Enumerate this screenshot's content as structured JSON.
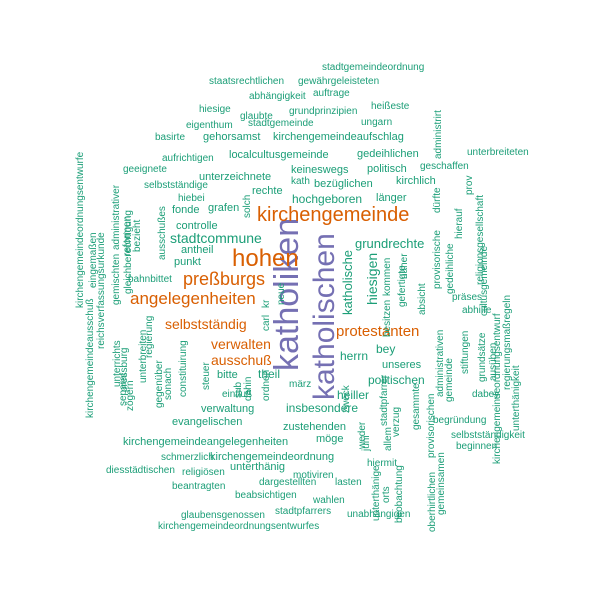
{
  "colors": {
    "green": "#1b9e77",
    "orange": "#d95f02",
    "purple": "#7570b3"
  },
  "words": [
    {
      "text": "katholiken",
      "color": "purple"
    },
    {
      "text": "katholischen",
      "color": "purple"
    },
    {
      "text": "hohen",
      "color": "orange"
    },
    {
      "text": "kirchengemeinde",
      "color": "orange"
    },
    {
      "text": "preßburgs",
      "color": "orange"
    },
    {
      "text": "angelegenheiten",
      "color": "orange"
    },
    {
      "text": "protestanten",
      "color": "orange"
    },
    {
      "text": "selbstständig",
      "color": "orange"
    },
    {
      "text": "verwalten",
      "color": "orange"
    },
    {
      "text": "ausschuß",
      "color": "orange"
    },
    {
      "text": "stadtcommune",
      "color": "green"
    },
    {
      "text": "hiesigen",
      "color": "green"
    },
    {
      "text": "katholische",
      "color": "green"
    },
    {
      "text": "grundrechte",
      "color": "green"
    },
    {
      "text": "hochgeboren",
      "color": "green"
    },
    {
      "text": "theil",
      "color": "green"
    },
    {
      "text": "herrn",
      "color": "green"
    },
    {
      "text": "politischen",
      "color": "green"
    },
    {
      "text": "insbesondere",
      "color": "green"
    },
    {
      "text": "bey",
      "color": "green"
    },
    {
      "text": "heiller",
      "color": "green"
    },
    {
      "text": "zustehenden",
      "color": "green"
    },
    {
      "text": "kirchengemeindeordnung",
      "color": "green"
    },
    {
      "text": "kirchengemeindeangelegenheiten",
      "color": "green"
    },
    {
      "text": "evangelischen",
      "color": "green"
    },
    {
      "text": "verwaltung",
      "color": "green"
    },
    {
      "text": "möge",
      "color": "green"
    },
    {
      "text": "unterthänig",
      "color": "green"
    },
    {
      "text": "localcultusgemeinde",
      "color": "green"
    },
    {
      "text": "gedeihlichen",
      "color": "green"
    },
    {
      "text": "unterzeichnete",
      "color": "green"
    },
    {
      "text": "bezüglichen",
      "color": "green"
    },
    {
      "text": "keineswegs",
      "color": "green"
    },
    {
      "text": "politisch",
      "color": "green"
    },
    {
      "text": "kirchlich",
      "color": "green"
    },
    {
      "text": "länger",
      "color": "green"
    },
    {
      "text": "rechte",
      "color": "green"
    },
    {
      "text": "controlle",
      "color": "green"
    },
    {
      "text": "fonde",
      "color": "green"
    },
    {
      "text": "grafen",
      "color": "green"
    },
    {
      "text": "antheil",
      "color": "green"
    },
    {
      "text": "punkt",
      "color": "green"
    },
    {
      "text": "bahnbittet",
      "color": "green"
    },
    {
      "text": "bitte",
      "color": "green"
    },
    {
      "text": "unseres",
      "color": "green"
    },
    {
      "text": "gehorsamst",
      "color": "green"
    },
    {
      "text": "kirchengemeindeaufschlag",
      "color": "green"
    },
    {
      "text": "stadtgemeinde",
      "color": "green"
    },
    {
      "text": "eigenthum",
      "color": "green"
    },
    {
      "text": "grundprinzipien",
      "color": "green"
    },
    {
      "text": "glaubte",
      "color": "green"
    },
    {
      "text": "hiesige",
      "color": "green"
    },
    {
      "text": "heißeste",
      "color": "green"
    },
    {
      "text": "ungarn",
      "color": "green"
    },
    {
      "text": "abhängigkeit",
      "color": "green"
    },
    {
      "text": "auftrage",
      "color": "green"
    },
    {
      "text": "staatsrechtlichen",
      "color": "green"
    },
    {
      "text": "gewährgeleisteten",
      "color": "green"
    },
    {
      "text": "stadtgemeindeordnung",
      "color": "green"
    },
    {
      "text": "basirte",
      "color": "green"
    },
    {
      "text": "aufrichtigen",
      "color": "green"
    },
    {
      "text": "geeignete",
      "color": "green"
    },
    {
      "text": "selbstständige",
      "color": "green"
    },
    {
      "text": "hiebei",
      "color": "green"
    },
    {
      "text": "kath",
      "color": "green"
    },
    {
      "text": "geschaffen",
      "color": "green"
    },
    {
      "text": "unterbreiteten",
      "color": "green"
    },
    {
      "text": "präses",
      "color": "green"
    },
    {
      "text": "abhilfe",
      "color": "green"
    },
    {
      "text": "stiftungen",
      "color": "green"
    },
    {
      "text": "grundsätze",
      "color": "green"
    },
    {
      "text": "ausüben",
      "color": "green"
    },
    {
      "text": "dabey",
      "color": "green"
    },
    {
      "text": "begründung",
      "color": "green"
    },
    {
      "text": "selbstständigkeit",
      "color": "green"
    },
    {
      "text": "beginnen",
      "color": "green"
    },
    {
      "text": "einfluß",
      "color": "green"
    },
    {
      "text": "märz",
      "color": "green"
    },
    {
      "text": "schmerzlich",
      "color": "green"
    },
    {
      "text": "religiösen",
      "color": "green"
    },
    {
      "text": "diesstädtischen",
      "color": "green"
    },
    {
      "text": "beantragten",
      "color": "green"
    },
    {
      "text": "dargestellten",
      "color": "green"
    },
    {
      "text": "lasten",
      "color": "green"
    },
    {
      "text": "beabsichtigen",
      "color": "green"
    },
    {
      "text": "wahlen",
      "color": "green"
    },
    {
      "text": "motiviren",
      "color": "green"
    },
    {
      "text": "hiermit",
      "color": "green"
    },
    {
      "text": "glaubensgenossen",
      "color": "green"
    },
    {
      "text": "stadtpfarrers",
      "color": "green"
    },
    {
      "text": "unabhängigen",
      "color": "green"
    },
    {
      "text": "kirchengemeindeordnungsentwurfes",
      "color": "green"
    },
    {
      "text": "zweck",
      "color": "green"
    },
    {
      "text": "weder",
      "color": "green"
    },
    {
      "text": "kirchengemeindeordnungsentwurfe",
      "color": "green"
    },
    {
      "text": "eingemaßen",
      "color": "green"
    },
    {
      "text": "kirchengemeindeausschuß",
      "color": "green"
    },
    {
      "text": "reichsverfassungsurkunde",
      "color": "green"
    },
    {
      "text": "administrativer",
      "color": "green"
    },
    {
      "text": "gemischten",
      "color": "green"
    },
    {
      "text": "gleichberechtigung",
      "color": "green"
    },
    {
      "text": "reformen",
      "color": "green"
    },
    {
      "text": "bezieht",
      "color": "green"
    },
    {
      "text": "unterrichts",
      "color": "green"
    },
    {
      "text": "separat",
      "color": "green"
    },
    {
      "text": "pressburg",
      "color": "green"
    },
    {
      "text": "zögern",
      "color": "green"
    },
    {
      "text": "unterbreiten",
      "color": "green"
    },
    {
      "text": "regierung",
      "color": "green"
    },
    {
      "text": "gegenüber",
      "color": "green"
    },
    {
      "text": "sonach",
      "color": "green"
    },
    {
      "text": "constituirung",
      "color": "green"
    },
    {
      "text": "ausschußes",
      "color": "green"
    },
    {
      "text": "steuer",
      "color": "green"
    },
    {
      "text": "sub",
      "color": "green"
    },
    {
      "text": "dahin",
      "color": "green"
    },
    {
      "text": "ordnen",
      "color": "green"
    },
    {
      "text": "neue",
      "color": "green"
    },
    {
      "text": "solch",
      "color": "green"
    },
    {
      "text": "carl",
      "color": "green"
    },
    {
      "text": "kr",
      "color": "green"
    },
    {
      "text": "stadtpfarrer",
      "color": "green"
    },
    {
      "text": "gefertigte",
      "color": "green"
    },
    {
      "text": "näher",
      "color": "green"
    },
    {
      "text": "kommen",
      "color": "green"
    },
    {
      "text": "absicht",
      "color": "green"
    },
    {
      "text": "dürfte",
      "color": "green"
    },
    {
      "text": "provisorische",
      "color": "green"
    },
    {
      "text": "administrativen",
      "color": "green"
    },
    {
      "text": "gemeinde",
      "color": "green"
    },
    {
      "text": "gesammte",
      "color": "green"
    },
    {
      "text": "provisorischen",
      "color": "green"
    },
    {
      "text": "gemeinsamen",
      "color": "green"
    },
    {
      "text": "oberhirtlichen",
      "color": "green"
    },
    {
      "text": "beobachtung",
      "color": "green"
    },
    {
      "text": "allem",
      "color": "green"
    },
    {
      "text": "verzug",
      "color": "green"
    },
    {
      "text": "unterthänige",
      "color": "green"
    },
    {
      "text": "juni",
      "color": "green"
    },
    {
      "text": "orts",
      "color": "green"
    },
    {
      "text": "gedeihliche",
      "color": "green"
    },
    {
      "text": "hierauf",
      "color": "green"
    },
    {
      "text": "prov",
      "color": "green"
    },
    {
      "text": "religionsgesellschaft",
      "color": "green"
    },
    {
      "text": "cultusgemeinde",
      "color": "green"
    },
    {
      "text": "kirchengemeindeordnungsentwurf",
      "color": "green"
    },
    {
      "text": "regierungsmaßregeln",
      "color": "green"
    },
    {
      "text": "unterthänigkeit",
      "color": "green"
    },
    {
      "text": "administrirt",
      "color": "green"
    },
    {
      "text": "besitzen",
      "color": "green"
    }
  ]
}
